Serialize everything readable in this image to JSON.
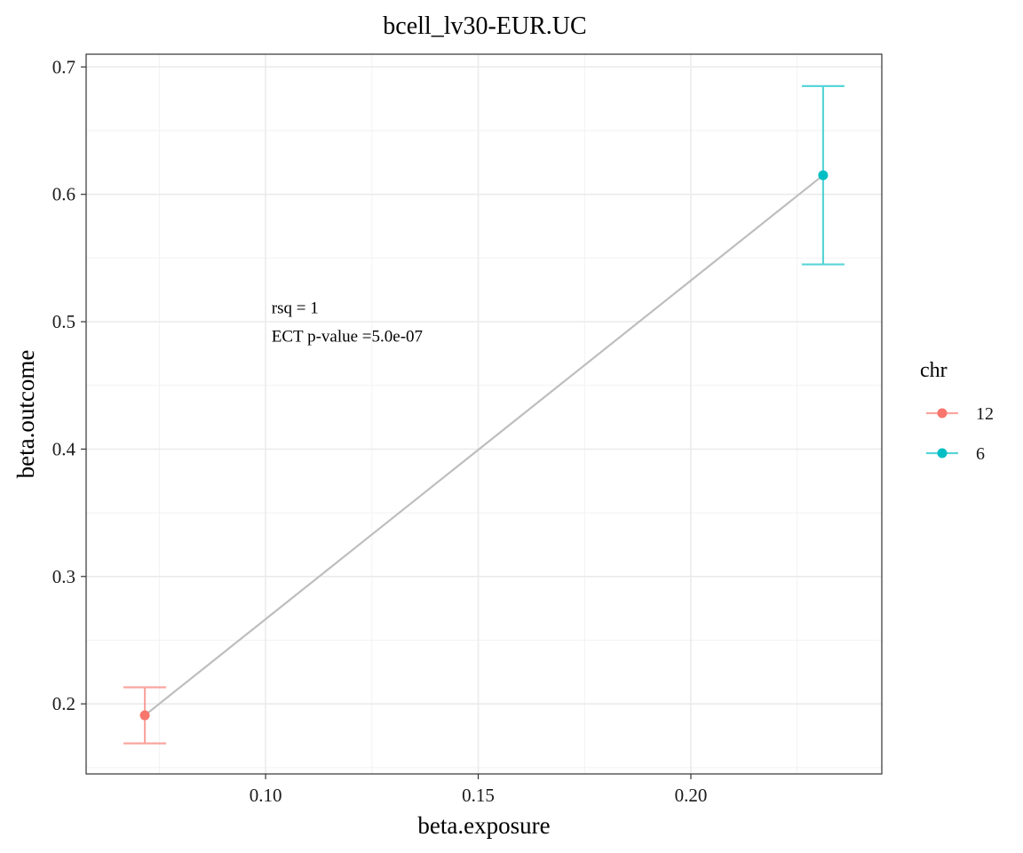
{
  "chart_data": {
    "type": "scatter",
    "title": "bcell_lv30-EUR.UC",
    "xlabel": "beta.exposure",
    "ylabel": "beta.outcome",
    "xlim": [
      0.0578,
      0.2449
    ],
    "ylim": [
      0.145,
      0.71
    ],
    "x_ticks": [
      0.1,
      0.15,
      0.2
    ],
    "x_tick_labels": [
      "0.10",
      "0.15",
      "0.20"
    ],
    "y_ticks": [
      0.2,
      0.3,
      0.4,
      0.5,
      0.6,
      0.7
    ],
    "y_tick_labels": [
      "0.2",
      "0.3",
      "0.4",
      "0.5",
      "0.6",
      "0.7"
    ],
    "grid": true,
    "legend": {
      "title": "chr",
      "position": "right",
      "entries": [
        {
          "label": "12",
          "color": "#F8766D"
        },
        {
          "label": "6",
          "color": "#00BFC4"
        }
      ]
    },
    "series": [
      {
        "name": "12",
        "color": "#F8766D",
        "points": [
          {
            "x": 0.0716,
            "y": 0.191,
            "ymin": 0.169,
            "ymax": 0.213
          }
        ]
      },
      {
        "name": "6",
        "color": "#00BFC4",
        "points": [
          {
            "x": 0.2311,
            "y": 0.615,
            "ymin": 0.545,
            "ymax": 0.685
          }
        ]
      }
    ],
    "fit_line": {
      "x": [
        0.0716,
        0.2311
      ],
      "y": [
        0.191,
        0.615
      ],
      "color": "#BEBEBE"
    },
    "annotations": [
      "rsq =  1",
      "ECT p-value =5.0e-07"
    ],
    "annotation_anchor": {
      "x": 0.1014,
      "y": 0.5115
    }
  }
}
